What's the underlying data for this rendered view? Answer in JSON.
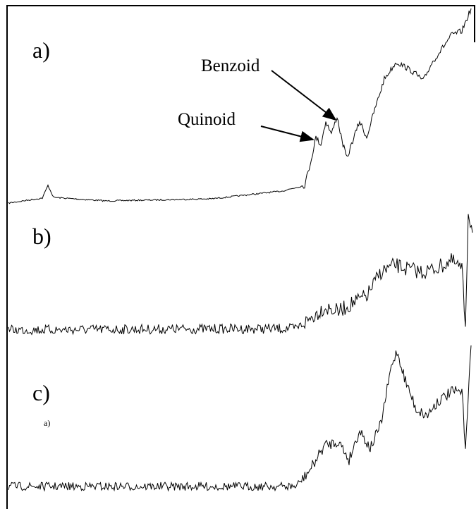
{
  "panels": [
    {
      "label": "a)",
      "annotations": [
        "Benzoid",
        "Quinoid"
      ]
    },
    {
      "label": "b)"
    },
    {
      "label": "c)",
      "sublabel": "a)"
    }
  ]
}
